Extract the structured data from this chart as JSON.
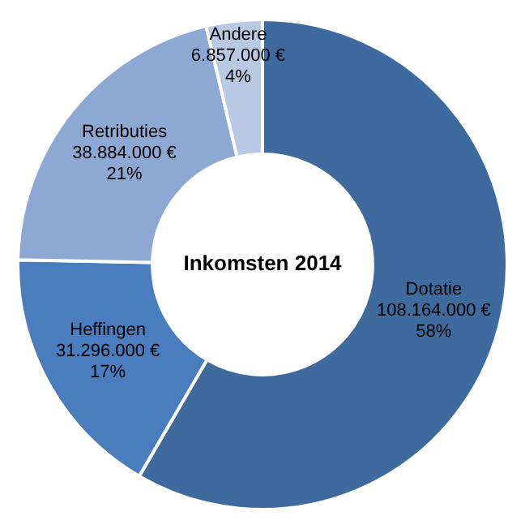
{
  "chart_data": {
    "type": "donut",
    "title": "Inkomsten 2014",
    "categories": [
      "Dotatie",
      "Heffingen",
      "Retributies",
      "Andere"
    ],
    "values": [
      108164000,
      31296000,
      38884000,
      6857000
    ],
    "colors": [
      "#3f6a9e",
      "#4a7dbd",
      "#8ea8d4",
      "#b9c9e4"
    ],
    "value_labels": [
      "108.164.000 €\n58%",
      "31.296.000 €\n17%",
      "38.884.000 €\n21%",
      "6.857.000 €\n4%"
    ],
    "legend": false
  }
}
